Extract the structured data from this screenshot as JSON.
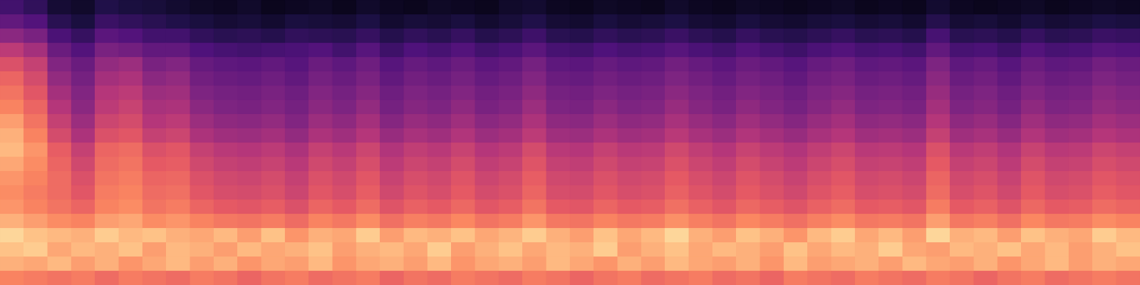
{
  "chart_data": {
    "type": "heatmap",
    "color": "magma",
    "color_range": [
      0,
      100
    ],
    "tick_labels": false,
    "cells": [
      [
        22,
        18,
        10,
        8,
        14,
        12,
        11,
        9,
        7,
        6,
        8,
        5,
        6,
        7,
        5,
        8,
        6,
        5,
        7,
        6,
        5,
        8,
        9,
        6,
        5,
        7,
        6,
        5,
        8,
        6,
        5,
        7,
        6,
        5,
        6,
        7,
        5,
        6,
        5,
        9,
        6,
        5,
        6,
        7,
        5,
        6,
        7,
        6
      ],
      [
        30,
        26,
        16,
        12,
        20,
        18,
        16,
        14,
        12,
        10,
        11,
        9,
        12,
        11,
        10,
        13,
        9,
        11,
        10,
        12,
        9,
        11,
        14,
        10,
        9,
        12,
        10,
        11,
        13,
        10,
        9,
        12,
        10,
        9,
        11,
        12,
        10,
        11,
        9,
        15,
        10,
        11,
        9,
        12,
        10,
        11,
        13,
        12
      ],
      [
        40,
        36,
        24,
        19,
        28,
        26,
        22,
        22,
        18,
        16,
        17,
        15,
        18,
        17,
        16,
        19,
        15,
        18,
        16,
        19,
        15,
        17,
        21,
        16,
        15,
        18,
        16,
        17,
        20,
        17,
        15,
        19,
        16,
        15,
        17,
        19,
        16,
        17,
        15,
        23,
        16,
        17,
        15,
        19,
        16,
        17,
        20,
        19
      ],
      [
        52,
        46,
        32,
        26,
        36,
        34,
        30,
        30,
        25,
        23,
        22,
        23,
        24,
        26,
        22,
        27,
        21,
        25,
        23,
        26,
        22,
        24,
        28,
        23,
        22,
        25,
        23,
        24,
        27,
        24,
        22,
        26,
        23,
        21,
        24,
        26,
        23,
        24,
        22,
        30,
        23,
        24,
        21,
        26,
        23,
        24,
        27,
        26
      ],
      [
        60,
        54,
        38,
        32,
        42,
        44,
        36,
        38,
        31,
        29,
        28,
        30,
        27,
        32,
        29,
        33,
        27,
        31,
        29,
        32,
        28,
        30,
        35,
        29,
        28,
        31,
        29,
        30,
        34,
        31,
        28,
        32,
        30,
        27,
        31,
        33,
        29,
        30,
        28,
        37,
        29,
        31,
        27,
        32,
        29,
        30,
        34,
        32
      ],
      [
        66,
        58,
        42,
        35,
        46,
        48,
        40,
        42,
        34,
        32,
        31,
        33,
        30,
        35,
        32,
        36,
        30,
        34,
        32,
        35,
        31,
        33,
        38,
        32,
        31,
        34,
        32,
        33,
        37,
        34,
        31,
        35,
        33,
        30,
        34,
        36,
        32,
        33,
        31,
        40,
        32,
        34,
        30,
        35,
        32,
        33,
        37,
        35
      ],
      [
        70,
        62,
        46,
        38,
        50,
        52,
        44,
        45,
        37,
        35,
        34,
        36,
        33,
        38,
        35,
        39,
        33,
        37,
        35,
        38,
        34,
        36,
        41,
        35,
        34,
        37,
        35,
        36,
        40,
        37,
        34,
        38,
        36,
        33,
        37,
        39,
        35,
        36,
        34,
        43,
        35,
        37,
        33,
        38,
        35,
        36,
        40,
        38
      ],
      [
        74,
        66,
        50,
        40,
        52,
        55,
        47,
        48,
        40,
        37,
        36,
        38,
        35,
        40,
        37,
        42,
        35,
        39,
        37,
        41,
        36,
        38,
        44,
        37,
        36,
        40,
        37,
        38,
        43,
        39,
        36,
        41,
        38,
        35,
        39,
        42,
        37,
        38,
        36,
        46,
        37,
        39,
        35,
        41,
        37,
        38,
        42,
        40
      ],
      [
        80,
        70,
        54,
        44,
        56,
        58,
        50,
        52,
        44,
        41,
        40,
        42,
        38,
        44,
        41,
        46,
        39,
        43,
        41,
        45,
        40,
        42,
        48,
        41,
        40,
        44,
        41,
        42,
        47,
        43,
        40,
        45,
        42,
        39,
        43,
        46,
        41,
        42,
        40,
        50,
        41,
        43,
        39,
        45,
        41,
        42,
        46,
        44
      ],
      [
        84,
        74,
        58,
        48,
        60,
        62,
        54,
        56,
        48,
        45,
        44,
        46,
        42,
        48,
        45,
        50,
        43,
        47,
        45,
        49,
        44,
        46,
        52,
        45,
        44,
        48,
        45,
        46,
        51,
        47,
        44,
        49,
        46,
        43,
        47,
        50,
        45,
        46,
        44,
        54,
        45,
        47,
        43,
        49,
        45,
        46,
        50,
        48
      ],
      [
        86,
        78,
        64,
        54,
        66,
        68,
        60,
        62,
        54,
        51,
        50,
        52,
        48,
        54,
        51,
        56,
        49,
        53,
        51,
        55,
        50,
        52,
        58,
        51,
        50,
        54,
        51,
        52,
        57,
        53,
        50,
        55,
        52,
        49,
        53,
        56,
        51,
        52,
        50,
        60,
        51,
        53,
        49,
        55,
        51,
        52,
        56,
        54
      ],
      [
        82,
        76,
        66,
        57,
        68,
        70,
        63,
        64,
        57,
        54,
        53,
        55,
        51,
        57,
        54,
        59,
        52,
        56,
        54,
        58,
        53,
        55,
        61,
        54,
        53,
        57,
        54,
        55,
        60,
        56,
        53,
        58,
        55,
        52,
        56,
        59,
        54,
        55,
        53,
        63,
        54,
        56,
        52,
        58,
        54,
        55,
        59,
        57
      ],
      [
        78,
        74,
        68,
        60,
        70,
        72,
        66,
        67,
        60,
        57,
        56,
        58,
        54,
        60,
        57,
        62,
        55,
        59,
        57,
        61,
        56,
        58,
        64,
        57,
        56,
        60,
        57,
        58,
        63,
        59,
        56,
        61,
        58,
        55,
        59,
        62,
        57,
        58,
        56,
        66,
        57,
        59,
        55,
        61,
        57,
        58,
        62,
        60
      ],
      [
        76,
        72,
        68,
        62,
        72,
        74,
        68,
        69,
        62,
        59,
        58,
        60,
        56,
        62,
        59,
        64,
        57,
        61,
        59,
        63,
        58,
        60,
        66,
        59,
        58,
        62,
        59,
        60,
        65,
        61,
        58,
        63,
        60,
        57,
        61,
        64,
        59,
        60,
        58,
        68,
        59,
        61,
        57,
        63,
        59,
        60,
        64,
        62
      ],
      [
        78,
        74,
        70,
        66,
        74,
        76,
        70,
        72,
        66,
        63,
        62,
        64,
        60,
        66,
        63,
        68,
        61,
        65,
        63,
        67,
        62,
        64,
        70,
        63,
        62,
        66,
        63,
        64,
        69,
        65,
        62,
        67,
        64,
        61,
        65,
        68,
        63,
        64,
        62,
        72,
        63,
        65,
        61,
        67,
        63,
        64,
        68,
        66
      ],
      [
        84,
        80,
        76,
        74,
        80,
        82,
        76,
        78,
        74,
        71,
        70,
        72,
        68,
        74,
        71,
        76,
        69,
        73,
        71,
        75,
        70,
        72,
        78,
        71,
        70,
        74,
        71,
        72,
        77,
        73,
        70,
        75,
        72,
        69,
        73,
        76,
        71,
        72,
        70,
        80,
        71,
        73,
        69,
        75,
        71,
        72,
        76,
        74
      ],
      [
        92,
        88,
        86,
        84,
        90,
        86,
        88,
        84,
        82,
        86,
        80,
        88,
        78,
        84,
        82,
        90,
        80,
        86,
        84,
        88,
        82,
        85,
        90,
        84,
        80,
        88,
        82,
        86,
        92,
        84,
        80,
        88,
        84,
        78,
        86,
        90,
        82,
        86,
        80,
        92,
        84,
        86,
        80,
        88,
        84,
        82,
        90,
        86
      ],
      [
        88,
        90,
        82,
        86,
        84,
        88,
        80,
        86,
        84,
        80,
        86,
        82,
        84,
        88,
        80,
        84,
        86,
        82,
        90,
        80,
        84,
        88,
        82,
        86,
        84,
        90,
        80,
        84,
        88,
        82,
        86,
        84,
        80,
        88,
        82,
        86,
        84,
        90,
        82,
        80,
        86,
        84,
        88,
        82,
        86,
        80,
        84,
        88
      ],
      [
        84,
        82,
        86,
        80,
        84,
        78,
        82,
        86,
        80,
        84,
        78,
        82,
        80,
        86,
        78,
        82,
        84,
        80,
        86,
        78,
        82,
        84,
        80,
        86,
        82,
        78,
        84,
        80,
        86,
        82,
        80,
        84,
        78,
        86,
        80,
        82,
        84,
        80,
        86,
        82,
        80,
        84,
        78,
        82,
        86,
        80,
        84,
        82
      ],
      [
        74,
        72,
        70,
        72,
        68,
        72,
        70,
        68,
        72,
        70,
        66,
        70,
        72,
        68,
        70,
        72,
        66,
        70,
        68,
        72,
        70,
        68,
        72,
        70,
        66,
        70,
        72,
        68,
        70,
        72,
        68,
        70,
        66,
        72,
        70,
        68,
        72,
        70,
        68,
        72,
        70,
        66,
        70,
        72,
        68,
        70,
        72,
        70
      ]
    ]
  }
}
